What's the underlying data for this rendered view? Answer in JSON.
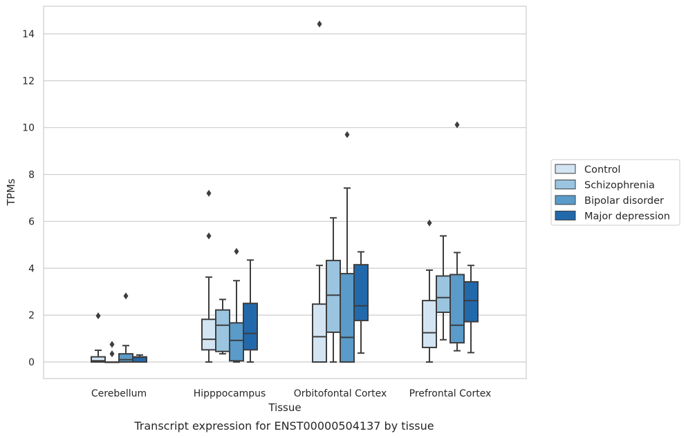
{
  "chart_data": {
    "type": "box",
    "title": "",
    "caption": "Transcript expression for ENST00000504137 by tissue",
    "xlabel": "Tissue",
    "ylabel": "TPMs",
    "ylim": [
      -0.7,
      15.2
    ],
    "yticks": [
      0,
      2,
      4,
      6,
      8,
      10,
      12,
      14
    ],
    "grid": true,
    "legend_position": "right",
    "categories": [
      "Cerebellum",
      "Hipppocampus",
      "Orbitofontal Cortex",
      "Prefrontal Cortex"
    ],
    "series": [
      {
        "name": "Control",
        "color": "#d3e4f3",
        "boxes": [
          {
            "whislo": 0,
            "q1": 0,
            "med": 0.05,
            "q3": 0.22,
            "whishi": 0.5,
            "fliers": [
              1.97
            ]
          },
          {
            "whislo": 0,
            "q1": 0.52,
            "med": 0.97,
            "q3": 1.82,
            "whishi": 3.62,
            "fliers": [
              7.2,
              5.38
            ]
          },
          {
            "whislo": 0,
            "q1": 0,
            "med": 1.08,
            "q3": 2.47,
            "whishi": 4.12,
            "fliers": [
              14.42
            ]
          },
          {
            "whislo": 0,
            "q1": 0.62,
            "med": 1.25,
            "q3": 2.62,
            "whishi": 3.92,
            "fliers": [
              5.93
            ]
          }
        ]
      },
      {
        "name": "Schizophrenia",
        "color": "#9ac4e0",
        "boxes": [
          {
            "whislo": 0,
            "q1": 0,
            "med": 0,
            "q3": 0,
            "whishi": 0,
            "fliers": [
              0.75,
              0.35
            ]
          },
          {
            "whislo": 0.35,
            "q1": 0.45,
            "med": 1.57,
            "q3": 2.22,
            "whishi": 2.67,
            "fliers": []
          },
          {
            "whislo": 0,
            "q1": 1.27,
            "med": 2.85,
            "q3": 4.33,
            "whishi": 6.15,
            "fliers": []
          },
          {
            "whislo": 0.95,
            "q1": 2.12,
            "med": 2.75,
            "q3": 3.67,
            "whishi": 5.38,
            "fliers": []
          }
        ]
      },
      {
        "name": "Bipolar disorder",
        "color": "#5a9bc9",
        "boxes": [
          {
            "whislo": 0,
            "q1": 0,
            "med": 0.1,
            "q3": 0.35,
            "whishi": 0.7,
            "fliers": [
              2.82
            ]
          },
          {
            "whislo": 0,
            "q1": 0.05,
            "med": 0.92,
            "q3": 1.67,
            "whishi": 3.47,
            "fliers": [
              4.72
            ]
          },
          {
            "whislo": 0,
            "q1": 0,
            "med": 1.05,
            "q3": 3.77,
            "whishi": 7.42,
            "fliers": [
              9.7
            ]
          },
          {
            "whislo": 0.48,
            "q1": 0.82,
            "med": 1.57,
            "q3": 3.73,
            "whishi": 4.67,
            "fliers": [
              10.12
            ]
          }
        ]
      },
      {
        "name": "Major depression",
        "color": "#2269ac",
        "boxes": [
          {
            "whislo": 0,
            "q1": 0,
            "med": 0.2,
            "q3": 0.22,
            "whishi": 0.3,
            "fliers": []
          },
          {
            "whislo": 0,
            "q1": 0.52,
            "med": 1.22,
            "q3": 2.5,
            "whishi": 4.35,
            "fliers": []
          },
          {
            "whislo": 0.38,
            "q1": 1.77,
            "med": 2.4,
            "q3": 4.15,
            "whishi": 4.7,
            "fliers": []
          },
          {
            "whislo": 0.4,
            "q1": 1.72,
            "med": 2.62,
            "q3": 3.42,
            "whishi": 4.12,
            "fliers": []
          }
        ]
      }
    ]
  }
}
